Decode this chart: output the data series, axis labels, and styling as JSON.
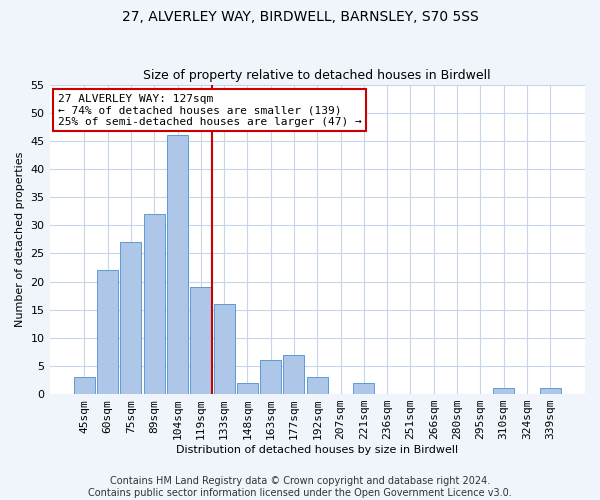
{
  "title": "27, ALVERLEY WAY, BIRDWELL, BARNSLEY, S70 5SS",
  "subtitle": "Size of property relative to detached houses in Birdwell",
  "xlabel": "Distribution of detached houses by size in Birdwell",
  "ylabel": "Number of detached properties",
  "categories": [
    "45sqm",
    "60sqm",
    "75sqm",
    "89sqm",
    "104sqm",
    "119sqm",
    "133sqm",
    "148sqm",
    "163sqm",
    "177sqm",
    "192sqm",
    "207sqm",
    "221sqm",
    "236sqm",
    "251sqm",
    "266sqm",
    "280sqm",
    "295sqm",
    "310sqm",
    "324sqm",
    "339sqm"
  ],
  "values": [
    3,
    22,
    27,
    32,
    46,
    19,
    16,
    2,
    6,
    7,
    3,
    0,
    2,
    0,
    0,
    0,
    0,
    0,
    1,
    0,
    1
  ],
  "bar_color": "#aec6e8",
  "bar_edge_color": "#5b9bd5",
  "vline_x_idx": 5.5,
  "vline_color": "#cc0000",
  "annotation_title": "27 ALVERLEY WAY: 127sqm",
  "annotation_line1": "← 74% of detached houses are smaller (139)",
  "annotation_line2": "25% of semi-detached houses are larger (47) →",
  "annotation_box_color": "#ffffff",
  "annotation_box_edge": "#cc0000",
  "ylim": [
    0,
    55
  ],
  "yticks": [
    0,
    5,
    10,
    15,
    20,
    25,
    30,
    35,
    40,
    45,
    50,
    55
  ],
  "footer1": "Contains HM Land Registry data © Crown copyright and database right 2024.",
  "footer2": "Contains public sector information licensed under the Open Government Licence v3.0.",
  "bg_color": "#f0f4fb",
  "plot_bg_color": "#ffffff",
  "grid_color": "#c8d4e8",
  "title_fontsize": 10,
  "subtitle_fontsize": 9,
  "axis_label_fontsize": 8,
  "tick_fontsize": 8,
  "annotation_fontsize": 8,
  "footer_fontsize": 7
}
